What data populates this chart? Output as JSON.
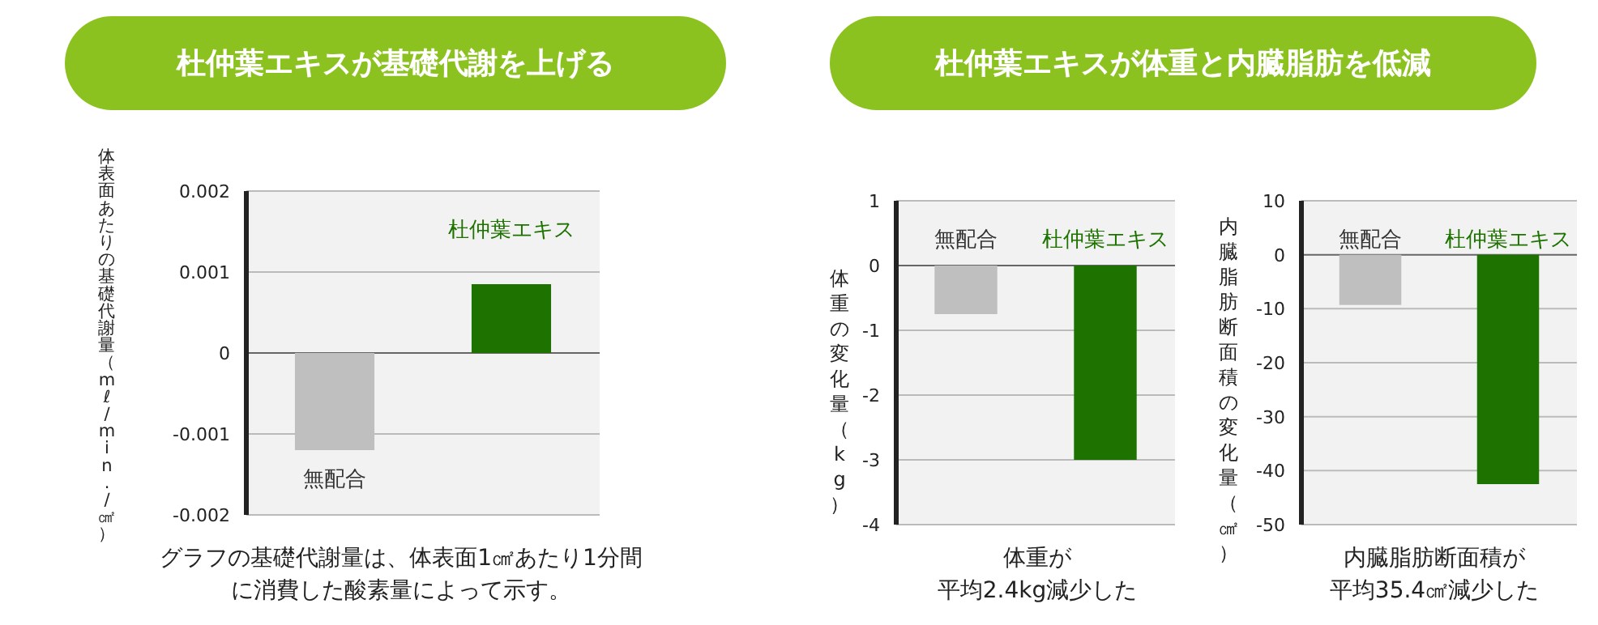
{
  "chart_data": [
    {
      "type": "bar",
      "title": "杜仲葉エキスが基礎代謝を上げる",
      "ylabel": "体表面あたりの基礎代謝量（mℓ/min./㎠）",
      "categories": [
        "無配合",
        "杜仲葉エキス"
      ],
      "values": [
        -0.0012,
        0.00085
      ],
      "colors": [
        "#bfbfbf",
        "#1e7300"
      ],
      "ylim": [
        -0.002,
        0.002
      ],
      "yticks": [
        -0.002,
        -0.001,
        0,
        0.001,
        0.002
      ],
      "grid": "y",
      "annotations": [
        "グラフの基礎代謝量は、体表面1㎠あたり1分間に消費した酸素量によって示す。"
      ]
    },
    {
      "type": "bar",
      "title": "杜仲葉エキスが体重と内臓脂肪を低減",
      "ylabel": "体重の変化量（kg）",
      "categories": [
        "無配合",
        "杜仲葉エキス"
      ],
      "values": [
        -0.75,
        -3.0
      ],
      "colors": [
        "#bfbfbf",
        "#1e7300"
      ],
      "ylim": [
        -4,
        1
      ],
      "yticks": [
        -4,
        -3,
        -2,
        -1,
        0,
        1
      ],
      "grid": "y",
      "annotations": [
        "体重が",
        "平均2.4kg減少した"
      ]
    },
    {
      "type": "bar",
      "ylabel": "内臓脂肪断面積の変化量（㎠）",
      "categories": [
        "無配合",
        "杜仲葉エキス"
      ],
      "values": [
        -9.3,
        -42.5
      ],
      "colors": [
        "#bfbfbf",
        "#1e7300"
      ],
      "ylim": [
        -50,
        10
      ],
      "yticks": [
        -50,
        -40,
        -30,
        -20,
        -10,
        0,
        10
      ],
      "grid": "y",
      "annotations": [
        "内臓脂肪断面積が",
        "平均35.4㎠減少した"
      ]
    }
  ]
}
